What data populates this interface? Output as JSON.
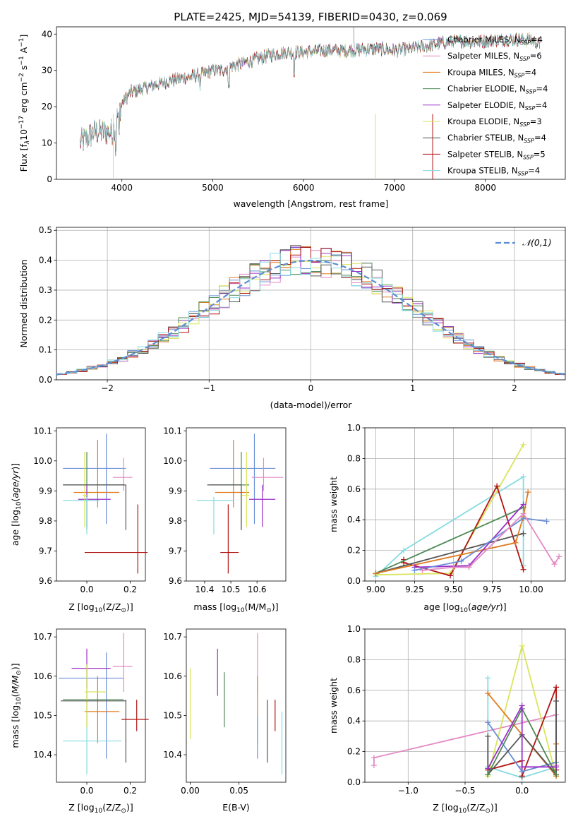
{
  "figure": {
    "title": "PLATE=2425, MJD=54139, FIBERID=0430, z=0.069"
  },
  "colors": {
    "c0": "#6a8fd8",
    "c1": "#e38ac4",
    "c2": "#e07b20",
    "c3": "#4e8a56",
    "c4": "#9b30c8",
    "c5": "#d9e55a",
    "c6": "#555555",
    "c7": "#b01515",
    "c8": "#86dbe0"
  },
  "chart_data": [
    {
      "id": "spectrum",
      "type": "line",
      "xlabel": "wavelength [Angstrom, rest frame]",
      "ylabel": "Flux [f",
      "xlim": [
        3280,
        8880
      ],
      "ylim": [
        0,
        42
      ],
      "xticks": [
        "4000",
        "5000",
        "6000",
        "7000",
        "8000"
      ],
      "yticks": [
        "0",
        "10",
        "20",
        "30",
        "40"
      ],
      "legend_position": "upper-right",
      "continuum": [
        [
          3540,
          10
        ],
        [
          3700,
          13
        ],
        [
          3900,
          13
        ],
        [
          4000,
          21
        ],
        [
          4100,
          24
        ],
        [
          4300,
          25.5
        ],
        [
          4500,
          27
        ],
        [
          4700,
          28
        ],
        [
          4900,
          29
        ],
        [
          5000,
          30
        ],
        [
          5100,
          30
        ],
        [
          5200,
          31
        ],
        [
          5400,
          32.5
        ],
        [
          5600,
          34
        ],
        [
          5800,
          35
        ],
        [
          6000,
          35
        ],
        [
          6200,
          35.5
        ],
        [
          6500,
          35.5
        ],
        [
          6800,
          36
        ],
        [
          7000,
          35.5
        ],
        [
          7200,
          36
        ],
        [
          7500,
          37.5
        ],
        [
          7700,
          38
        ],
        [
          8000,
          38
        ],
        [
          8200,
          38.5
        ],
        [
          8500,
          38.5
        ],
        [
          8600,
          37
        ]
      ],
      "series": [
        {
          "name": "Chabrier MILES, N",
          "nssp": "=4",
          "color_key": "c0"
        },
        {
          "name": "Salpeter MILES, N",
          "nssp": "=6",
          "color_key": "c1"
        },
        {
          "name": "Kroupa MILES, N",
          "nssp": "=4",
          "color_key": "c2"
        },
        {
          "name": "Chabrier ELODIE, N",
          "nssp": "=4",
          "color_key": "c3"
        },
        {
          "name": "Salpeter ELODIE, N",
          "nssp": "=4",
          "color_key": "c4"
        },
        {
          "name": "Kroupa ELODIE, N",
          "nssp": "=3",
          "color_key": "c5"
        },
        {
          "name": "Chabrier STELIB, N",
          "nssp": "=4",
          "color_key": "c6"
        },
        {
          "name": "Salpeter STELIB, N",
          "nssp": "=5",
          "color_key": "c7"
        },
        {
          "name": "Kroupa STELIB, N",
          "nssp": "=4",
          "color_key": "c8"
        }
      ]
    },
    {
      "id": "residuals",
      "type": "step-histogram",
      "xlabel": "(data-model)/error",
      "ylabel": "Normed distribution",
      "xlim": [
        -2.5,
        2.5
      ],
      "ylim": [
        0,
        0.51
      ],
      "xticks": [
        -2,
        -1,
        0,
        1,
        2
      ],
      "yticks": [
        0.0,
        0.1,
        0.2,
        0.3,
        0.4,
        0.5
      ],
      "grid": true,
      "legend": "𝒩(0,1)",
      "legend_position": "upper-right"
    },
    {
      "id": "age-vs-Z",
      "type": "errorbar",
      "xlabel": "Z [log",
      "ylabel": "age  [log",
      "xlim": [
        -0.14,
        0.27
      ],
      "ylim": [
        9.6,
        10.11
      ],
      "xticks": [
        0.0,
        0.2
      ],
      "yticks": [
        9.6,
        9.7,
        9.8,
        9.9,
        10.0,
        10.1
      ],
      "points": [
        {
          "c": "c0",
          "x": 0.09,
          "y": 9.975,
          "xe": [
            -0.11,
            0.18
          ],
          "ye": [
            9.79,
            10.09
          ]
        },
        {
          "c": "c1",
          "x": 0.17,
          "y": 9.945,
          "xe": [
            0.12,
            0.21
          ],
          "ye": [
            9.9,
            10.01
          ]
        },
        {
          "c": "c2",
          "x": 0.05,
          "y": 9.895,
          "xe": [
            -0.06,
            0.15
          ],
          "ye": [
            9.845,
            10.07
          ]
        },
        {
          "c": "c3",
          "x": 0.0,
          "y": 9.92,
          "xe": [
            -0.11,
            0.17
          ],
          "ye": [
            9.77,
            10.03
          ]
        },
        {
          "c": "c4",
          "x": 0.0,
          "y": 9.872,
          "xe": [
            -0.04,
            0.11
          ],
          "ye": [
            9.78,
            9.92
          ]
        },
        {
          "c": "c5",
          "x": -0.01,
          "y": 9.885,
          "xe": [
            -0.02,
            0.0
          ],
          "ye": [
            9.78,
            10.03
          ]
        },
        {
          "c": "c6",
          "x": 0.18,
          "y": 9.92,
          "xe": [
            -0.11,
            0.18
          ],
          "ye": [
            9.77,
            9.92
          ]
        },
        {
          "c": "c7",
          "x": 0.235,
          "y": 9.695,
          "xe": [
            -0.01,
            0.28
          ],
          "ye": [
            9.625,
            9.855
          ]
        },
        {
          "c": "c8",
          "x": 0.0,
          "y": 9.868,
          "xe": [
            -0.11,
            0.06
          ],
          "ye": [
            9.755,
            9.88
          ]
        }
      ]
    },
    {
      "id": "age-vs-mass",
      "type": "errorbar",
      "xlabel": "mass [log",
      "ylabel": "",
      "xlim": [
        10.33,
        10.71
      ],
      "ylim": [
        9.6,
        10.11
      ],
      "xticks": [
        10.4,
        10.5,
        10.6
      ],
      "yticks": [
        9.6,
        9.7,
        9.8,
        9.9,
        10.0,
        10.1
      ],
      "points": [
        {
          "c": "c0",
          "x": 10.59,
          "y": 9.975,
          "xe": [
            10.42,
            10.67
          ],
          "ye": [
            9.79,
            10.09
          ]
        },
        {
          "c": "c1",
          "x": 10.625,
          "y": 9.945,
          "xe": [
            10.58,
            10.7
          ],
          "ye": [
            9.9,
            10.01
          ]
        },
        {
          "c": "c2",
          "x": 10.51,
          "y": 9.895,
          "xe": [
            10.44,
            10.57
          ],
          "ye": [
            9.845,
            10.07
          ]
        },
        {
          "c": "c3",
          "x": 10.54,
          "y": 9.92,
          "xe": [
            10.42,
            10.57
          ],
          "ye": [
            9.77,
            10.03
          ]
        },
        {
          "c": "c4",
          "x": 10.62,
          "y": 9.872,
          "xe": [
            10.57,
            10.67
          ],
          "ye": [
            9.78,
            9.92
          ]
        },
        {
          "c": "c5",
          "x": 10.56,
          "y": 9.885,
          "xe": [
            10.54,
            10.57
          ],
          "ye": [
            9.78,
            10.03
          ]
        },
        {
          "c": "c6",
          "x": 10.54,
          "y": 9.92,
          "xe": [
            10.41,
            10.54
          ],
          "ye": [
            9.77,
            9.92
          ]
        },
        {
          "c": "c7",
          "x": 10.49,
          "y": 9.695,
          "xe": [
            10.46,
            10.53
          ],
          "ye": [
            9.625,
            9.855
          ]
        },
        {
          "c": "c8",
          "x": 10.435,
          "y": 9.868,
          "xe": [
            10.37,
            10.51
          ],
          "ye": [
            9.755,
            9.88
          ]
        }
      ]
    },
    {
      "id": "mass-weight-vs-age",
      "type": "line",
      "xlabel": "age  [log",
      "ylabel": "mass weight",
      "xlim": [
        8.93,
        10.22
      ],
      "ylim": [
        0,
        1.0
      ],
      "xticks": [
        9.0,
        9.25,
        9.5,
        9.75,
        10.0
      ],
      "yticks": [
        0.0,
        0.2,
        0.4,
        0.6,
        0.8,
        1.0
      ],
      "grid": true,
      "series": [
        {
          "c": "c8",
          "pts": [
            [
              9.0,
              0.03
            ],
            [
              9.18,
              0.2
            ],
            [
              9.95,
              0.68
            ],
            [
              9.95,
              0.1
            ]
          ]
        },
        {
          "c": "c5",
          "pts": [
            [
              9.0,
              0.04
            ],
            [
              9.48,
              0.05
            ],
            [
              9.95,
              0.89
            ]
          ]
        },
        {
          "c": "c7",
          "pts": [
            [
              9.18,
              0.14
            ],
            [
              9.18,
              0.12
            ],
            [
              9.48,
              0.035
            ],
            [
              9.78,
              0.62
            ],
            [
              9.95,
              0.075
            ]
          ]
        },
        {
          "c": "c3",
          "pts": [
            [
              9.0,
              0.05
            ],
            [
              9.95,
              0.48
            ]
          ]
        },
        {
          "c": "c6",
          "pts": [
            [
              9.0,
              0.05
            ],
            [
              9.95,
              0.31
            ]
          ]
        },
        {
          "c": "c2",
          "pts": [
            [
              9.0,
              0.05
            ],
            [
              9.9,
              0.25
            ],
            [
              9.95,
              0.42
            ],
            [
              9.98,
              0.58
            ]
          ]
        },
        {
          "c": "c4",
          "pts": [
            [
              9.25,
              0.09
            ],
            [
              9.6,
              0.1
            ],
            [
              9.95,
              0.5
            ]
          ]
        },
        {
          "c": "c0",
          "pts": [
            [
              9.25,
              0.07
            ],
            [
              9.55,
              0.13
            ],
            [
              9.95,
              0.41
            ],
            [
              10.1,
              0.39
            ]
          ]
        },
        {
          "c": "c1",
          "pts": [
            [
              9.3,
              0.07
            ],
            [
              9.5,
              0.09
            ],
            [
              9.6,
              0.09
            ],
            [
              9.95,
              0.44
            ],
            [
              10.15,
              0.11
            ],
            [
              10.18,
              0.16
            ]
          ]
        }
      ]
    },
    {
      "id": "mass-vs-Z",
      "type": "errorbar",
      "xlabel": "Z [log",
      "ylabel": "mass [log",
      "xlim": [
        -0.14,
        0.27
      ],
      "ylim": [
        10.33,
        10.72
      ],
      "xticks": [
        0.0,
        0.2
      ],
      "yticks": [
        10.4,
        10.5,
        10.6,
        10.7
      ],
      "points": [
        {
          "c": "c0",
          "x": 0.09,
          "y": 10.595,
          "xe": [
            -0.13,
            0.17
          ],
          "ye": [
            10.39,
            10.66
          ]
        },
        {
          "c": "c1",
          "x": 0.17,
          "y": 10.625,
          "xe": [
            0.12,
            0.21
          ],
          "ye": [
            10.56,
            10.71
          ]
        },
        {
          "c": "c2",
          "x": 0.05,
          "y": 10.51,
          "xe": [
            -0.01,
            0.15
          ],
          "ye": [
            10.43,
            10.6
          ]
        },
        {
          "c": "c3",
          "x": 0.0,
          "y": 10.54,
          "xe": [
            -0.11,
            0.17
          ],
          "ye": [
            10.47,
            10.63
          ]
        },
        {
          "c": "c4",
          "x": 0.0,
          "y": 10.62,
          "xe": [
            -0.07,
            0.11
          ],
          "ye": [
            10.57,
            10.67
          ]
        },
        {
          "c": "c5",
          "x": 0.0,
          "y": 10.56,
          "xe": [
            -0.01,
            0.09
          ],
          "ye": [
            10.47,
            10.63
          ]
        },
        {
          "c": "c6",
          "x": 0.18,
          "y": 10.537,
          "xe": [
            -0.12,
            0.18
          ],
          "ye": [
            10.38,
            10.54
          ]
        },
        {
          "c": "c7",
          "x": 0.23,
          "y": 10.49,
          "xe": [
            0.16,
            0.285
          ],
          "ye": [
            10.46,
            10.54
          ]
        },
        {
          "c": "c8",
          "x": 0.0,
          "y": 10.435,
          "xe": [
            -0.11,
            0.16
          ],
          "ye": [
            10.35,
            10.47
          ]
        }
      ]
    },
    {
      "id": "mass-vs-EBV",
      "type": "errorbar",
      "xlabel": "E(B-V)",
      "ylabel": "",
      "xlim": [
        -0.004,
        0.098
      ],
      "ylim": [
        10.33,
        10.72
      ],
      "xticks": [
        0.0,
        0.05
      ],
      "yticks": [
        10.4,
        10.5,
        10.6,
        10.7
      ],
      "points": [
        {
          "c": "c5",
          "x": 0.0,
          "y": 10.54,
          "xe": [
            0.0,
            0.0
          ],
          "ye": [
            10.44,
            10.62
          ]
        },
        {
          "c": "c4",
          "x": 0.028,
          "y": 10.61,
          "xe": [
            0.028,
            0.028
          ],
          "ye": [
            10.55,
            10.67
          ]
        },
        {
          "c": "c3",
          "x": 0.035,
          "y": 10.54,
          "xe": [
            0.035,
            0.035
          ],
          "ye": [
            10.47,
            10.61
          ]
        },
        {
          "c": "c1",
          "x": 0.069,
          "y": 10.62,
          "xe": [
            0.069,
            0.069
          ],
          "ye": [
            10.56,
            10.71
          ]
        },
        {
          "c": "c2",
          "x": 0.069,
          "y": 10.51,
          "xe": [
            0.069,
            0.069
          ],
          "ye": [
            10.43,
            10.6
          ]
        },
        {
          "c": "c0",
          "x": 0.069,
          "y": 10.45,
          "xe": [
            0.069,
            0.069
          ],
          "ye": [
            10.39,
            10.5
          ]
        },
        {
          "c": "c6",
          "x": 0.079,
          "y": 10.46,
          "xe": [
            0.079,
            0.079
          ],
          "ye": [
            10.38,
            10.54
          ]
        },
        {
          "c": "c7",
          "x": 0.087,
          "y": 10.49,
          "xe": [
            0.087,
            0.087
          ],
          "ye": [
            10.46,
            10.54
          ]
        },
        {
          "c": "c8",
          "x": 0.094,
          "y": 10.43,
          "xe": [
            0.094,
            0.094
          ],
          "ye": [
            10.35,
            10.51
          ]
        }
      ]
    },
    {
      "id": "mass-weight-vs-Z",
      "type": "line",
      "xlabel": "Z [log",
      "ylabel": "mass weight",
      "xlim": [
        -1.38,
        0.38
      ],
      "ylim": [
        0,
        1.0
      ],
      "xticks": [
        -1.0,
        -0.5,
        0.0
      ],
      "yticks": [
        0.0,
        0.2,
        0.4,
        0.6,
        0.8,
        1.0
      ],
      "grid": true,
      "series": [
        {
          "c": "c1",
          "pts": [
            [
              -1.3,
              0.11
            ],
            [
              -1.3,
              0.16
            ],
            [
              0.3,
              0.44
            ],
            [
              0.3,
              0.11
            ]
          ]
        },
        {
          "c": "c8",
          "pts": [
            [
              -0.3,
              0.68
            ],
            [
              -0.3,
              0.1
            ],
            [
              0.0,
              0.03
            ],
            [
              0.3,
              0.1
            ]
          ]
        },
        {
          "c": "c5",
          "pts": [
            [
              -0.3,
              0.04
            ],
            [
              0.0,
              0.89
            ],
            [
              0.3,
              0.04
            ]
          ]
        },
        {
          "c": "c7",
          "pts": [
            [
              -0.3,
              0.08
            ],
            [
              0.0,
              0.14
            ],
            [
              0.0,
              0.04
            ],
            [
              0.3,
              0.62
            ],
            [
              0.3,
              0.08
            ]
          ]
        },
        {
          "c": "c2",
          "pts": [
            [
              -0.3,
              0.58
            ],
            [
              0.3,
              0.04
            ],
            [
              0.3,
              0.25
            ]
          ]
        },
        {
          "c": "c0",
          "pts": [
            [
              -0.3,
              0.39
            ],
            [
              0.0,
              0.07
            ],
            [
              0.3,
              0.13
            ]
          ]
        },
        {
          "c": "c6",
          "pts": [
            [
              -0.3,
              0.3
            ],
            [
              -0.3,
              0.05
            ],
            [
              0.0,
              0.31
            ],
            [
              0.3,
              0.05
            ],
            [
              0.3,
              0.53
            ]
          ]
        },
        {
          "c": "c3",
          "pts": [
            [
              -0.3,
              0.05
            ],
            [
              0.0,
              0.48
            ],
            [
              0.3,
              0.05
            ]
          ]
        },
        {
          "c": "c4",
          "pts": [
            [
              -0.3,
              0.09
            ],
            [
              0.0,
              0.5
            ],
            [
              0.0,
              0.1
            ],
            [
              0.3,
              0.1
            ]
          ]
        }
      ]
    }
  ]
}
